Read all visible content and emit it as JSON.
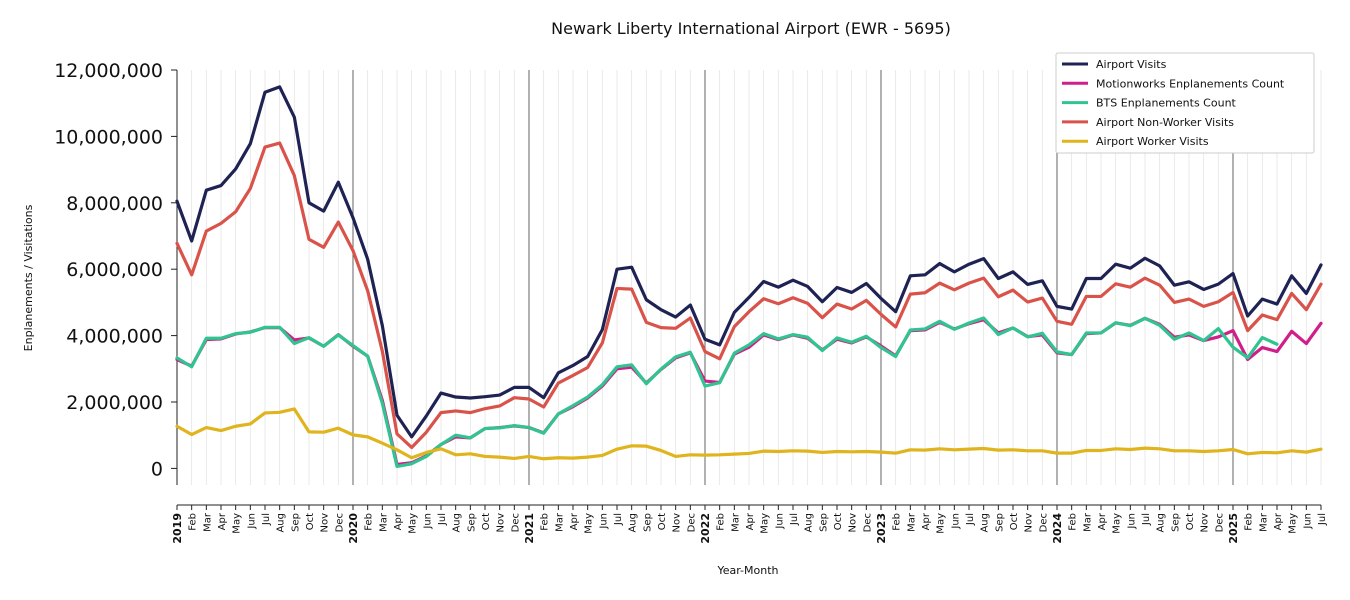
{
  "chart_data": {
    "type": "line",
    "title": "Newark Liberty International Airport (EWR - 5695)",
    "xlabel": "Year-Month",
    "ylabel": "Enplanements / Visitations",
    "ylim": [
      -500000,
      12000000
    ],
    "yticks": [
      0,
      2000000,
      4000000,
      6000000,
      8000000,
      10000000,
      12000000
    ],
    "ytick_labels": [
      "0",
      "2,000,000",
      "4,000,000",
      "6,000,000",
      "8,000,000",
      "10,000,000",
      "12,000,000"
    ],
    "grid": "vertical",
    "legend_position": "top-right",
    "x": [
      "2019-01",
      "2019-02",
      "2019-03",
      "2019-04",
      "2019-05",
      "2019-06",
      "2019-07",
      "2019-08",
      "2019-09",
      "2019-10",
      "2019-11",
      "2019-12",
      "2020-01",
      "2020-02",
      "2020-03",
      "2020-04",
      "2020-05",
      "2020-06",
      "2020-07",
      "2020-08",
      "2020-09",
      "2020-10",
      "2020-11",
      "2020-12",
      "2021-01",
      "2021-02",
      "2021-03",
      "2021-04",
      "2021-05",
      "2021-06",
      "2021-07",
      "2021-08",
      "2021-09",
      "2021-10",
      "2021-11",
      "2021-12",
      "2022-01",
      "2022-02",
      "2022-03",
      "2022-04",
      "2022-05",
      "2022-06",
      "2022-07",
      "2022-08",
      "2022-09",
      "2022-10",
      "2022-11",
      "2022-12",
      "2023-01",
      "2023-02",
      "2023-03",
      "2023-04",
      "2023-05",
      "2023-06",
      "2023-07",
      "2023-08",
      "2023-09",
      "2023-10",
      "2023-11",
      "2023-12",
      "2024-01",
      "2024-02",
      "2024-03",
      "2024-04",
      "2024-05",
      "2024-06",
      "2024-07",
      "2024-08",
      "2024-09",
      "2024-10",
      "2024-11",
      "2024-12",
      "2025-01",
      "2025-02",
      "2025-03",
      "2025-04",
      "2025-05",
      "2025-06",
      "2025-07"
    ],
    "x_tick_labels": [
      "2019",
      "Feb",
      "Mar",
      "Apr",
      "May",
      "Jun",
      "Jul",
      "Aug",
      "Sep",
      "Oct",
      "Nov",
      "Dec",
      "2020",
      "Feb",
      "Mar",
      "Apr",
      "May",
      "Jun",
      "Jul",
      "Aug",
      "Sep",
      "Oct",
      "Nov",
      "Dec",
      "2021",
      "Feb",
      "Mar",
      "Apr",
      "May",
      "Jun",
      "Jul",
      "Aug",
      "Sep",
      "Oct",
      "Nov",
      "Dec",
      "2022",
      "Feb",
      "Mar",
      "Apr",
      "May",
      "Jun",
      "Jul",
      "Aug",
      "Sep",
      "Oct",
      "Nov",
      "Dec",
      "2023",
      "Feb",
      "Mar",
      "Apr",
      "May",
      "Jun",
      "Jul",
      "Aug",
      "Sep",
      "Oct",
      "Nov",
      "Dec",
      "2024",
      "Feb",
      "Mar",
      "Apr",
      "May",
      "Jun",
      "Jul",
      "Aug",
      "Sep",
      "Oct",
      "Nov",
      "Dec",
      "2025",
      "Feb",
      "Mar",
      "Apr",
      "May",
      "Jun",
      "Jul"
    ],
    "series": [
      {
        "name": "Airport Visits",
        "color": "#1f2354",
        "values": [
          8050000,
          6850000,
          8380000,
          8520000,
          9020000,
          9780000,
          11330000,
          11490000,
          10580000,
          8000000,
          7750000,
          8620000,
          7550000,
          6300000,
          4300000,
          1600000,
          950000,
          1580000,
          2270000,
          2150000,
          2120000,
          2160000,
          2210000,
          2440000,
          2440000,
          2130000,
          2880000,
          3100000,
          3370000,
          4180000,
          6000000,
          6060000,
          5080000,
          4780000,
          4560000,
          4920000,
          3890000,
          3720000,
          4700000,
          5150000,
          5630000,
          5460000,
          5670000,
          5480000,
          5020000,
          5450000,
          5300000,
          5570000,
          5120000,
          4720000,
          5800000,
          5830000,
          6170000,
          5920000,
          6150000,
          6320000,
          5720000,
          5920000,
          5540000,
          5650000,
          4880000,
          4800000,
          5720000,
          5720000,
          6150000,
          6030000,
          6330000,
          6100000,
          5520000,
          5620000,
          5390000,
          5550000,
          5870000,
          4590000,
          5100000,
          4950000,
          5800000,
          5270000,
          6130000
        ]
      },
      {
        "name": "Motionworks Enplanements Count",
        "color": "#d11f8a",
        "values": [
          3280000,
          3080000,
          3880000,
          3900000,
          4050000,
          4110000,
          4240000,
          4240000,
          3870000,
          3930000,
          3680000,
          4030000,
          3680000,
          3380000,
          2050000,
          120000,
          170000,
          380000,
          720000,
          950000,
          920000,
          1200000,
          1230000,
          1280000,
          1230000,
          1070000,
          1640000,
          1860000,
          2120000,
          2480000,
          3000000,
          3050000,
          2570000,
          2980000,
          3330000,
          3480000,
          2630000,
          2590000,
          3440000,
          3650000,
          4020000,
          3880000,
          4020000,
          3920000,
          3570000,
          3890000,
          3780000,
          3960000,
          3690000,
          3390000,
          4150000,
          4170000,
          4400000,
          4200000,
          4360000,
          4480000,
          4080000,
          4230000,
          3970000,
          4020000,
          3480000,
          3430000,
          4060000,
          4080000,
          4380000,
          4310000,
          4520000,
          4340000,
          3950000,
          4020000,
          3850000,
          3960000,
          4150000,
          3280000,
          3640000,
          3520000,
          4130000,
          3760000,
          4370000
        ]
      },
      {
        "name": "BTS Enplanements Count",
        "color": "#2fc490",
        "values": [
          3330000,
          3060000,
          3920000,
          3920000,
          4060000,
          4100000,
          4250000,
          4250000,
          3760000,
          3940000,
          3680000,
          4020000,
          3700000,
          3380000,
          1960000,
          60000,
          140000,
          360000,
          720000,
          1000000,
          920000,
          1200000,
          1220000,
          1290000,
          1230000,
          1060000,
          1640000,
          1890000,
          2150000,
          2520000,
          3060000,
          3120000,
          2550000,
          2990000,
          3360000,
          3500000,
          2480000,
          2580000,
          3470000,
          3720000,
          4060000,
          3900000,
          4030000,
          3950000,
          3550000,
          3930000,
          3800000,
          3980000,
          3640000,
          3370000,
          4170000,
          4200000,
          4430000,
          4190000,
          4380000,
          4530000,
          4030000,
          4230000,
          3960000,
          4070000,
          3510000,
          3430000,
          4080000,
          4080000,
          4390000,
          4300000,
          4520000,
          4310000,
          3890000,
          4080000,
          3850000,
          4210000,
          3650000,
          3330000,
          3940000,
          3740000,
          null,
          null,
          null
        ]
      },
      {
        "name": "Airport Non-Worker Visits",
        "color": "#d9534a",
        "values": [
          6780000,
          5830000,
          7150000,
          7380000,
          7730000,
          8430000,
          9680000,
          9800000,
          8820000,
          6900000,
          6660000,
          7420000,
          6560000,
          5350000,
          3530000,
          1040000,
          630000,
          1090000,
          1680000,
          1730000,
          1680000,
          1800000,
          1880000,
          2130000,
          2090000,
          1850000,
          2570000,
          2800000,
          3040000,
          3780000,
          5420000,
          5400000,
          4400000,
          4240000,
          4220000,
          4530000,
          3520000,
          3300000,
          4270000,
          4720000,
          5110000,
          4960000,
          5140000,
          4970000,
          4540000,
          4950000,
          4800000,
          5060000,
          4640000,
          4260000,
          5250000,
          5290000,
          5580000,
          5380000,
          5580000,
          5730000,
          5170000,
          5370000,
          5010000,
          5130000,
          4430000,
          4340000,
          5180000,
          5180000,
          5560000,
          5460000,
          5730000,
          5520000,
          5000000,
          5100000,
          4880000,
          5020000,
          5300000,
          4150000,
          4620000,
          4480000,
          5270000,
          4780000,
          5550000
        ]
      },
      {
        "name": "Airport Worker Visits",
        "color": "#e0b41c",
        "values": [
          1270000,
          1020000,
          1230000,
          1140000,
          1270000,
          1340000,
          1670000,
          1690000,
          1790000,
          1100000,
          1090000,
          1210000,
          1010000,
          950000,
          760000,
          560000,
          320000,
          480000,
          590000,
          410000,
          440000,
          360000,
          340000,
          300000,
          360000,
          290000,
          320000,
          310000,
          340000,
          390000,
          580000,
          680000,
          670000,
          540000,
          360000,
          410000,
          400000,
          410000,
          430000,
          450000,
          520000,
          510000,
          530000,
          520000,
          480000,
          510000,
          500000,
          510000,
          490000,
          460000,
          560000,
          550000,
          590000,
          560000,
          580000,
          600000,
          550000,
          560000,
          530000,
          530000,
          460000,
          460000,
          540000,
          540000,
          590000,
          570000,
          610000,
          590000,
          530000,
          530000,
          510000,
          530000,
          570000,
          440000,
          480000,
          470000,
          530000,
          490000,
          580000
        ]
      }
    ]
  }
}
